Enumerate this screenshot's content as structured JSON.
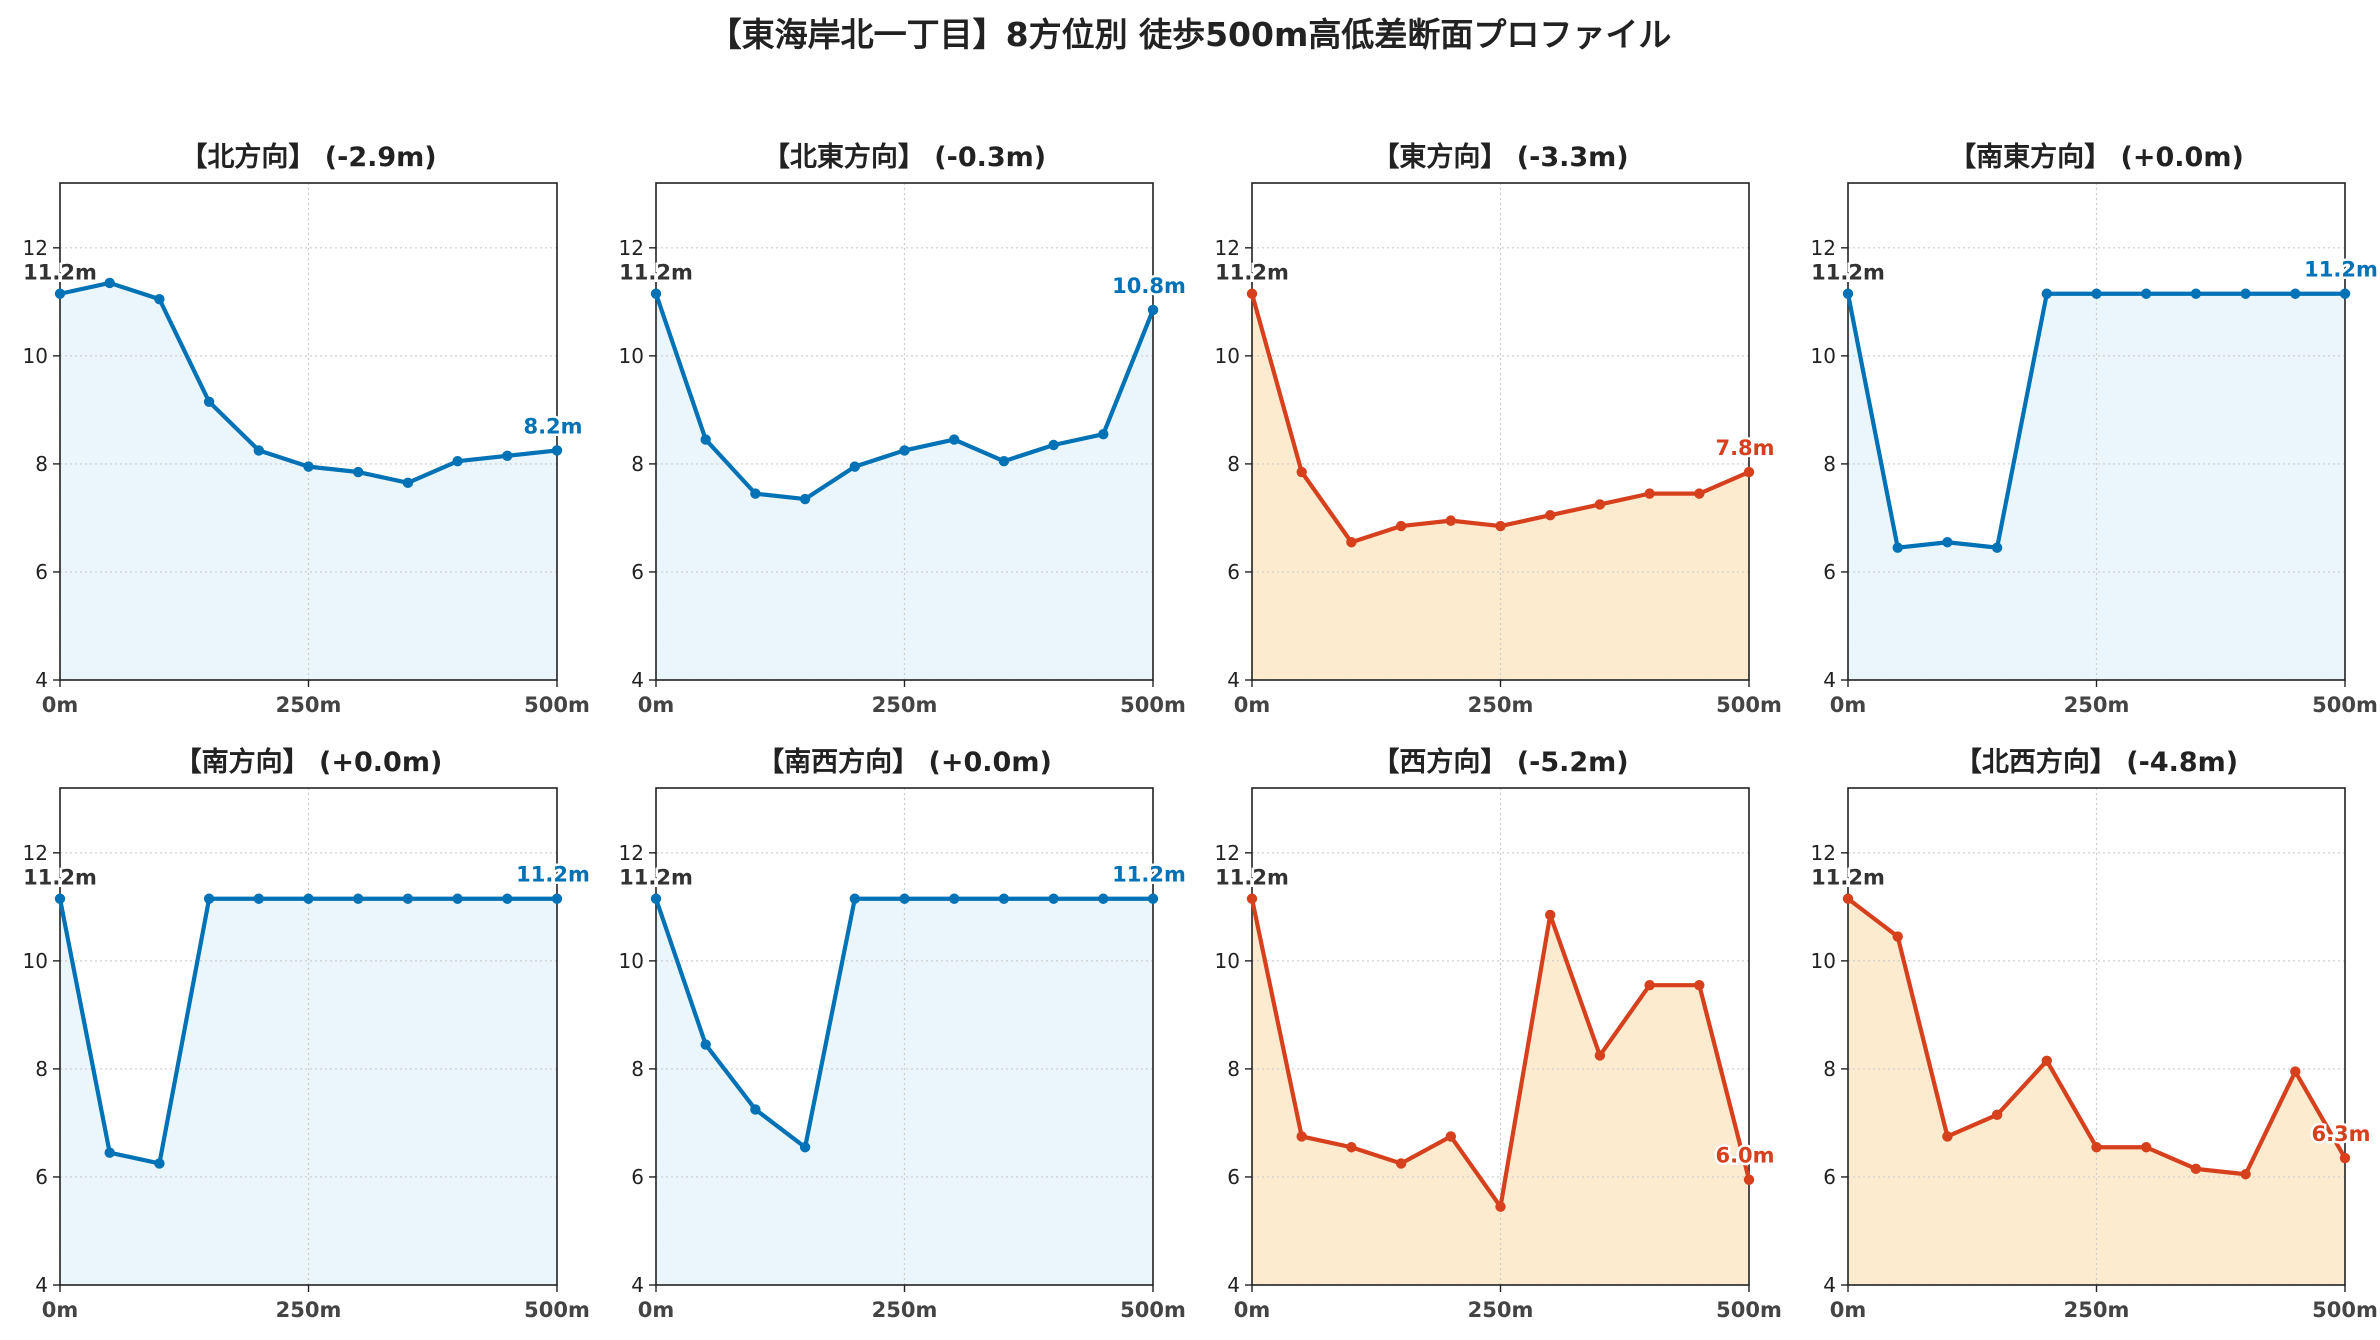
{
  "title": "【東海岸北一丁目】8方位別 徒歩500m高低差断面プロファイル",
  "colors": {
    "up": "#0072b5",
    "up_fill": "#eaf6fc",
    "down": "#d6401c",
    "down_fill": "#fdebd0",
    "start_label": "#333333"
  },
  "chart_data": [
    {
      "type": "line",
      "title": "【北方向】 (-2.9m)",
      "trend": "up",
      "xlim": [
        0,
        500
      ],
      "ylim": [
        4,
        13.2
      ],
      "x": [
        0,
        50,
        100,
        150,
        200,
        250,
        300,
        350,
        400,
        450,
        500
      ],
      "y": [
        11.15,
        11.35,
        11.05,
        9.15,
        8.25,
        7.95,
        7.85,
        7.65,
        8.05,
        8.15,
        8.25
      ],
      "start_label": "11.2m",
      "end_label": "8.2m",
      "xticks": [
        {
          "v": 0,
          "l": "0m"
        },
        {
          "v": 250,
          "l": "250m"
        },
        {
          "v": 500,
          "l": "500m"
        }
      ],
      "yticks": [
        {
          "v": 4,
          "l": "4"
        },
        {
          "v": 6,
          "l": "6"
        },
        {
          "v": 8,
          "l": "8"
        },
        {
          "v": 10,
          "l": "10"
        },
        {
          "v": 12,
          "l": "12"
        }
      ]
    },
    {
      "type": "line",
      "title": "【北東方向】 (-0.3m)",
      "trend": "up",
      "xlim": [
        0,
        500
      ],
      "ylim": [
        4,
        13.2
      ],
      "x": [
        0,
        50,
        100,
        150,
        200,
        250,
        300,
        350,
        400,
        450,
        500
      ],
      "y": [
        11.15,
        8.45,
        7.45,
        7.35,
        7.95,
        8.25,
        8.45,
        8.05,
        8.35,
        8.55,
        10.85
      ],
      "start_label": "11.2m",
      "end_label": "10.8m",
      "xticks": [
        {
          "v": 0,
          "l": "0m"
        },
        {
          "v": 250,
          "l": "250m"
        },
        {
          "v": 500,
          "l": "500m"
        }
      ],
      "yticks": [
        {
          "v": 4,
          "l": "4"
        },
        {
          "v": 6,
          "l": "6"
        },
        {
          "v": 8,
          "l": "8"
        },
        {
          "v": 10,
          "l": "10"
        },
        {
          "v": 12,
          "l": "12"
        }
      ]
    },
    {
      "type": "line",
      "title": "【東方向】 (-3.3m)",
      "trend": "down",
      "xlim": [
        0,
        500
      ],
      "ylim": [
        4,
        13.2
      ],
      "x": [
        0,
        50,
        100,
        150,
        200,
        250,
        300,
        350,
        400,
        450,
        500
      ],
      "y": [
        11.15,
        7.85,
        6.55,
        6.85,
        6.95,
        6.85,
        7.05,
        7.25,
        7.45,
        7.45,
        7.85
      ],
      "start_label": "11.2m",
      "end_label": "7.8m",
      "xticks": [
        {
          "v": 0,
          "l": "0m"
        },
        {
          "v": 250,
          "l": "250m"
        },
        {
          "v": 500,
          "l": "500m"
        }
      ],
      "yticks": [
        {
          "v": 4,
          "l": "4"
        },
        {
          "v": 6,
          "l": "6"
        },
        {
          "v": 8,
          "l": "8"
        },
        {
          "v": 10,
          "l": "10"
        },
        {
          "v": 12,
          "l": "12"
        }
      ]
    },
    {
      "type": "line",
      "title": "【南東方向】 (+0.0m)",
      "trend": "up",
      "xlim": [
        0,
        500
      ],
      "ylim": [
        4,
        13.2
      ],
      "x": [
        0,
        50,
        100,
        150,
        200,
        250,
        300,
        350,
        400,
        450,
        500
      ],
      "y": [
        11.15,
        6.45,
        6.55,
        6.45,
        11.15,
        11.15,
        11.15,
        11.15,
        11.15,
        11.15,
        11.15
      ],
      "start_label": "11.2m",
      "end_label": "11.2m",
      "xticks": [
        {
          "v": 0,
          "l": "0m"
        },
        {
          "v": 250,
          "l": "250m"
        },
        {
          "v": 500,
          "l": "500m"
        }
      ],
      "yticks": [
        {
          "v": 4,
          "l": "4"
        },
        {
          "v": 6,
          "l": "6"
        },
        {
          "v": 8,
          "l": "8"
        },
        {
          "v": 10,
          "l": "10"
        },
        {
          "v": 12,
          "l": "12"
        }
      ]
    },
    {
      "type": "line",
      "title": "【南方向】 (+0.0m)",
      "trend": "up",
      "xlim": [
        0,
        500
      ],
      "ylim": [
        4,
        13.2
      ],
      "x": [
        0,
        50,
        100,
        150,
        200,
        250,
        300,
        350,
        400,
        450,
        500
      ],
      "y": [
        11.15,
        6.45,
        6.25,
        11.15,
        11.15,
        11.15,
        11.15,
        11.15,
        11.15,
        11.15,
        11.15
      ],
      "start_label": "11.2m",
      "end_label": "11.2m",
      "xticks": [
        {
          "v": 0,
          "l": "0m"
        },
        {
          "v": 250,
          "l": "250m"
        },
        {
          "v": 500,
          "l": "500m"
        }
      ],
      "yticks": [
        {
          "v": 4,
          "l": "4"
        },
        {
          "v": 6,
          "l": "6"
        },
        {
          "v": 8,
          "l": "8"
        },
        {
          "v": 10,
          "l": "10"
        },
        {
          "v": 12,
          "l": "12"
        }
      ]
    },
    {
      "type": "line",
      "title": "【南西方向】 (+0.0m)",
      "trend": "up",
      "xlim": [
        0,
        500
      ],
      "ylim": [
        4,
        13.2
      ],
      "x": [
        0,
        50,
        100,
        150,
        200,
        250,
        300,
        350,
        400,
        450,
        500
      ],
      "y": [
        11.15,
        8.45,
        7.25,
        6.55,
        11.15,
        11.15,
        11.15,
        11.15,
        11.15,
        11.15,
        11.15
      ],
      "start_label": "11.2m",
      "end_label": "11.2m",
      "xticks": [
        {
          "v": 0,
          "l": "0m"
        },
        {
          "v": 250,
          "l": "250m"
        },
        {
          "v": 500,
          "l": "500m"
        }
      ],
      "yticks": [
        {
          "v": 4,
          "l": "4"
        },
        {
          "v": 6,
          "l": "6"
        },
        {
          "v": 8,
          "l": "8"
        },
        {
          "v": 10,
          "l": "10"
        },
        {
          "v": 12,
          "l": "12"
        }
      ]
    },
    {
      "type": "line",
      "title": "【西方向】 (-5.2m)",
      "trend": "down",
      "xlim": [
        0,
        500
      ],
      "ylim": [
        4,
        13.2
      ],
      "x": [
        0,
        50,
        100,
        150,
        200,
        250,
        300,
        350,
        400,
        450,
        500
      ],
      "y": [
        11.15,
        6.75,
        6.55,
        6.25,
        6.75,
        5.45,
        10.85,
        8.25,
        9.55,
        9.55,
        5.95
      ],
      "start_label": "11.2m",
      "end_label": "6.0m",
      "xticks": [
        {
          "v": 0,
          "l": "0m"
        },
        {
          "v": 250,
          "l": "250m"
        },
        {
          "v": 500,
          "l": "500m"
        }
      ],
      "yticks": [
        {
          "v": 4,
          "l": "4"
        },
        {
          "v": 6,
          "l": "6"
        },
        {
          "v": 8,
          "l": "8"
        },
        {
          "v": 10,
          "l": "10"
        },
        {
          "v": 12,
          "l": "12"
        }
      ]
    },
    {
      "type": "line",
      "title": "【北西方向】 (-4.8m)",
      "trend": "down",
      "xlim": [
        0,
        500
      ],
      "ylim": [
        4,
        13.2
      ],
      "x": [
        0,
        50,
        100,
        150,
        200,
        250,
        300,
        350,
        400,
        450,
        500
      ],
      "y": [
        11.15,
        10.45,
        6.75,
        7.15,
        8.15,
        6.55,
        6.55,
        6.15,
        6.05,
        7.95,
        6.35
      ],
      "start_label": "11.2m",
      "end_label": "6.3m",
      "xticks": [
        {
          "v": 0,
          "l": "0m"
        },
        {
          "v": 250,
          "l": "250m"
        },
        {
          "v": 500,
          "l": "500m"
        }
      ],
      "yticks": [
        {
          "v": 4,
          "l": "4"
        },
        {
          "v": 6,
          "l": "6"
        },
        {
          "v": 8,
          "l": "8"
        },
        {
          "v": 10,
          "l": "10"
        },
        {
          "v": 12,
          "l": "12"
        }
      ]
    }
  ]
}
